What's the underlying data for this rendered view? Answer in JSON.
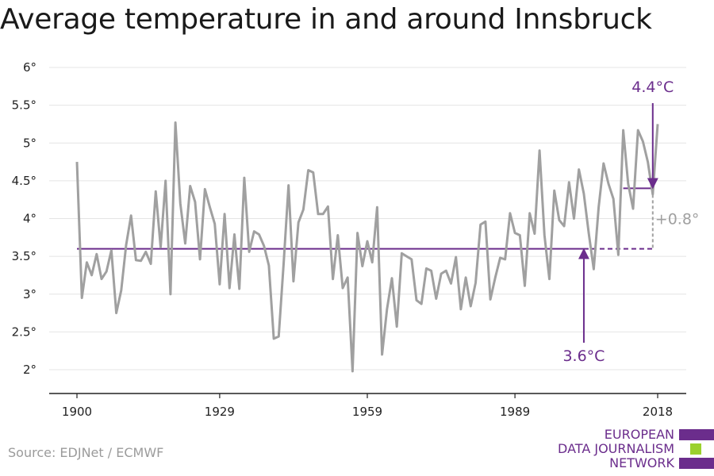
{
  "title": "Average temperature in and around Innsbruck",
  "source": "Source: EDJNet / ECMWF",
  "logo": {
    "lines": [
      "EUROPEAN",
      "DATA JOURNALISM",
      "NETWORK"
    ],
    "colors": [
      "#6b2d8c",
      "#9bd12e",
      "#6b2d8c"
    ]
  },
  "colors": {
    "series": "#a0a0a0",
    "reference": "#6b2d8c",
    "difference": "#a0a0a0",
    "axis": "#222222"
  },
  "chart_data": {
    "type": "line",
    "title": "Average temperature in and around Innsbruck",
    "xlabel": "",
    "ylabel": "",
    "xlim": [
      1900,
      2018
    ],
    "ylim": [
      2,
      6
    ],
    "x_ticks": [
      1900,
      1929,
      1959,
      1989,
      2018
    ],
    "x_tick_labels": [
      "1900",
      "1929",
      "1959",
      "1989",
      "2018"
    ],
    "y_ticks": [
      2,
      2.5,
      3,
      3.5,
      4,
      4.5,
      5,
      5.5,
      6
    ],
    "y_tick_labels": [
      "2°",
      "2.5°",
      "3°",
      "3.5°",
      "4°",
      "4.5°",
      "5°",
      "5.5°",
      "6°"
    ],
    "grid": "horizontal",
    "x": [
      1900,
      1901,
      1902,
      1903,
      1904,
      1905,
      1906,
      1907,
      1908,
      1909,
      1910,
      1911,
      1912,
      1913,
      1914,
      1915,
      1916,
      1917,
      1918,
      1919,
      1920,
      1921,
      1922,
      1923,
      1924,
      1925,
      1926,
      1927,
      1928,
      1929,
      1930,
      1931,
      1932,
      1933,
      1934,
      1935,
      1936,
      1937,
      1938,
      1939,
      1940,
      1941,
      1942,
      1943,
      1944,
      1945,
      1946,
      1947,
      1948,
      1949,
      1950,
      1951,
      1952,
      1953,
      1954,
      1955,
      1956,
      1957,
      1958,
      1959,
      1960,
      1961,
      1962,
      1963,
      1964,
      1965,
      1966,
      1967,
      1968,
      1969,
      1970,
      1971,
      1972,
      1973,
      1974,
      1975,
      1976,
      1977,
      1978,
      1979,
      1980,
      1981,
      1982,
      1983,
      1984,
      1985,
      1986,
      1987,
      1988,
      1989,
      1990,
      1991,
      1992,
      1993,
      1994,
      1995,
      1996,
      1997,
      1998,
      1999,
      2000,
      2001,
      2002,
      2003,
      2004,
      2005,
      2006,
      2007,
      2008,
      2009,
      2010,
      2011,
      2012,
      2013,
      2014,
      2015,
      2016,
      2017,
      2018
    ],
    "series": [
      {
        "values": [
          4.75,
          2.95,
          3.42,
          3.25,
          3.53,
          3.2,
          3.3,
          3.58,
          2.75,
          3.05,
          3.65,
          4.04,
          3.45,
          3.44,
          3.56,
          3.4,
          4.36,
          3.62,
          4.5,
          3.0,
          5.27,
          4.2,
          3.67,
          4.43,
          4.22,
          3.46,
          4.39,
          4.15,
          3.93,
          3.13,
          4.06,
          3.08,
          3.79,
          3.07,
          4.54,
          3.56,
          3.83,
          3.79,
          3.64,
          3.38,
          2.41,
          2.44,
          3.4,
          4.44,
          3.17,
          3.95,
          4.12,
          4.64,
          4.61,
          4.06,
          4.06,
          4.16,
          3.2,
          3.78,
          3.08,
          3.22,
          1.98,
          3.81,
          3.37,
          3.7,
          3.42,
          4.15,
          2.2,
          2.8,
          3.21,
          2.57,
          3.54,
          3.5,
          3.46,
          2.92,
          2.87,
          3.34,
          3.31,
          2.94,
          3.27,
          3.31,
          3.14,
          3.49,
          2.8,
          3.22,
          2.84,
          3.15,
          3.92,
          3.96,
          2.93,
          3.22,
          3.48,
          3.46,
          4.07,
          3.81,
          3.78,
          3.11,
          4.07,
          3.8,
          4.9,
          3.78,
          3.2,
          4.37,
          3.98,
          3.9,
          4.48,
          4.0,
          4.65,
          4.33,
          3.8,
          3.33,
          4.15,
          4.73,
          4.46,
          4.26,
          3.52,
          5.17,
          4.46,
          4.13,
          5.17,
          5.02,
          4.75,
          4.32,
          5.25
        ]
      }
    ],
    "annotations": {
      "baseline": {
        "value": 3.6,
        "label": "3.6°C",
        "from": 1900,
        "to": 2017,
        "dashed_from": 2003,
        "arrow_at": 2003
      },
      "recent": {
        "value": 4.4,
        "label": "4.4°C",
        "from": 2011,
        "to": 2017,
        "arrow_at": 2017
      },
      "difference": {
        "label": "+0.8°",
        "at": 2017
      }
    }
  }
}
